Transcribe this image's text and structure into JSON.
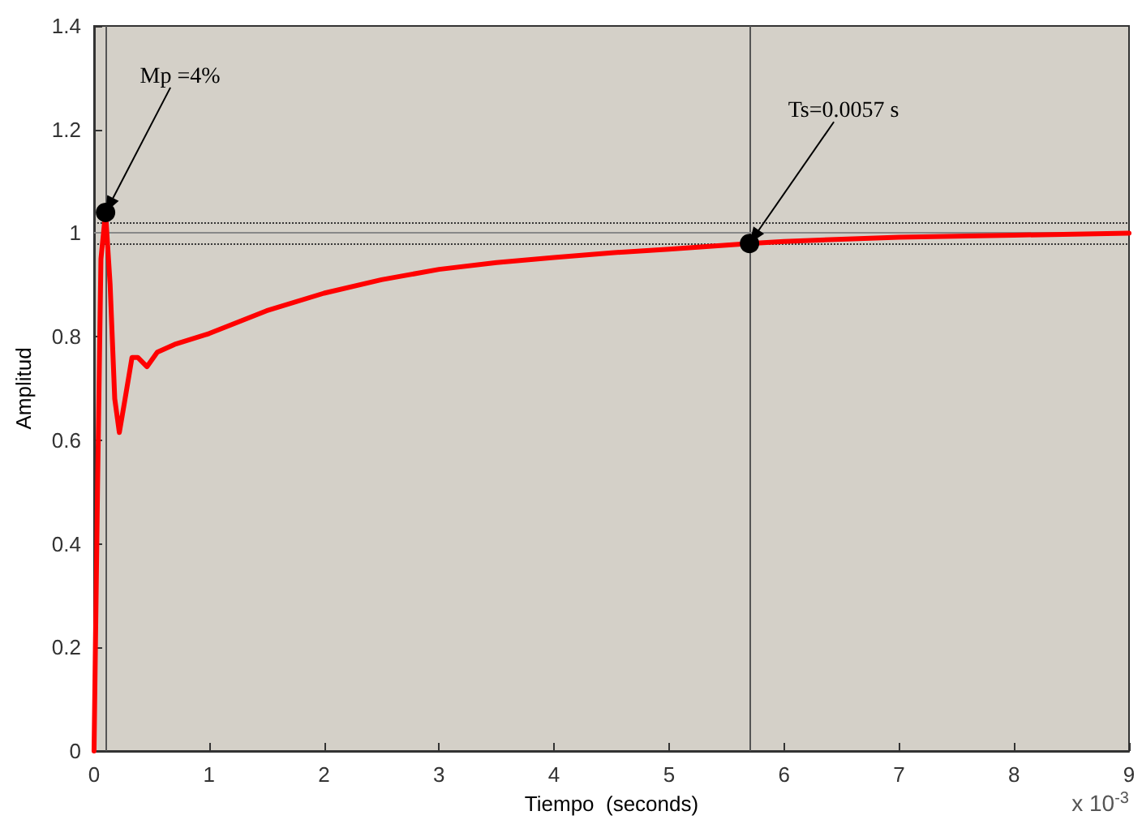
{
  "chart_data": {
    "type": "line",
    "xlabel": "Tiempo  (seconds)",
    "ylabel": "Amplitud",
    "xlim": [
      0,
      9
    ],
    "ylim": [
      0,
      1.4
    ],
    "xticks": [
      0,
      1,
      2,
      3,
      4,
      5,
      6,
      7,
      8,
      9
    ],
    "yticks": [
      0,
      0.2,
      0.4,
      0.6,
      0.8,
      1,
      1.2,
      1.4
    ],
    "grid": false,
    "series": [
      {
        "color": "#ff0000",
        "marker": "none",
        "line_style": "solid",
        "x": [
          0,
          0.03,
          0.06,
          0.1,
          0.14,
          0.18,
          0.22,
          0.27,
          0.33,
          0.38,
          0.46,
          0.55,
          0.7,
          1,
          1.5,
          2,
          2.5,
          3,
          3.5,
          4,
          4.5,
          5,
          5.7,
          6,
          7,
          8,
          9
        ],
        "values": [
          0,
          0.5,
          0.95,
          1.04,
          0.9,
          0.68,
          0.615,
          0.68,
          0.76,
          0.76,
          0.742,
          0.77,
          0.785,
          0.806,
          0.85,
          0.884,
          0.91,
          0.93,
          0.943,
          0.953,
          0.962,
          0.969,
          0.98,
          0.984,
          0.992,
          0.996,
          1.0
        ]
      },
      {
        "type": "scatter",
        "color": "#000000",
        "marker": "circle",
        "x": [
          0.1,
          5.7
        ],
        "values": [
          1.04,
          0.98
        ]
      }
    ],
    "ref_lines": [
      {
        "axis": "x",
        "value": 0.1,
        "color": "#555555",
        "line_style": "solid"
      },
      {
        "axis": "x",
        "value": 5.7,
        "color": "#555555",
        "line_style": "solid"
      },
      {
        "axis": "y",
        "value": 1.02,
        "color": "#333333",
        "line_style": "dotted"
      },
      {
        "axis": "y",
        "value": 1,
        "color": "#888888",
        "line_style": "solid"
      },
      {
        "axis": "y",
        "value": 0.98,
        "color": "#333333",
        "line_style": "dotted"
      }
    ],
    "annotations": [
      {
        "text": "Mp =4%",
        "x": 0.1,
        "y": 1.04
      },
      {
        "text": "Ts=0.0057 s",
        "x": 5.7,
        "y": 0.98
      },
      "x 10$^{-3}$"
    ]
  }
}
